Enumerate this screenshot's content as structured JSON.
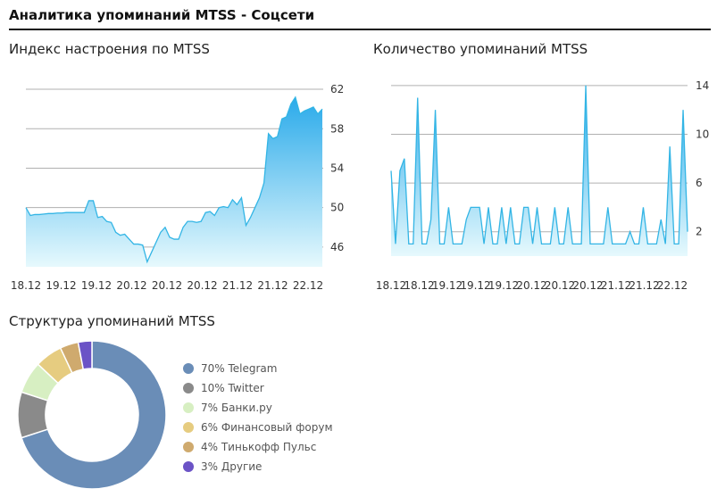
{
  "page": {
    "title": "Аналитика упоминаний MTSS - Соцсети"
  },
  "sections": {
    "sentiment_title": "Индекс настроения по MTSS",
    "mentions_title": "Количество упоминаний MTSS",
    "structure_title": "Структура упоминаний MTSS"
  },
  "colors": {
    "line": "#33b5e5",
    "area_top": "#2aaaea",
    "area_bottom": "#e6f9fd",
    "grid": "#b0b0b0"
  },
  "chart_data": [
    {
      "type": "area",
      "title": "Индекс настроения по MTSS",
      "x_tick_labels": [
        "18.12",
        "19.12",
        "19.12",
        "20.12",
        "20.12",
        "20.12",
        "21.12",
        "21.12",
        "22.12"
      ],
      "y_ticks": [
        46,
        50,
        54,
        58,
        62
      ],
      "ylim": [
        44,
        63
      ],
      "grid": true,
      "y_axis_side": "right",
      "series": [
        {
          "values": [
            50.0,
            49.2,
            49.3,
            49.3,
            49.35,
            49.4,
            49.4,
            49.45,
            49.45,
            49.5,
            49.5,
            49.5,
            49.5,
            49.5,
            50.7,
            50.7,
            49.0,
            49.1,
            48.6,
            48.5,
            47.5,
            47.2,
            47.3,
            46.8,
            46.3,
            46.3,
            46.2,
            44.5,
            45.5,
            46.5,
            47.5,
            48.0,
            47.0,
            46.8,
            46.8,
            48.0,
            48.6,
            48.6,
            48.5,
            48.6,
            49.5,
            49.6,
            49.2,
            50.0,
            50.1,
            50.0,
            50.8,
            50.3,
            51.0,
            48.2,
            49.0,
            50.0,
            51.0,
            52.5,
            57.5,
            57.0,
            57.2,
            59.0,
            59.2,
            60.5,
            61.2,
            59.5,
            59.8,
            60.0,
            60.2,
            59.5,
            60.0
          ]
        }
      ]
    },
    {
      "type": "area",
      "title": "Количество упоминаний MTSS",
      "x_tick_labels": [
        "18.12",
        "18.12",
        "19.12",
        "19.12",
        "19.12",
        "20.12",
        "20.12",
        "20.12",
        "21.12",
        "21.12",
        "22.12"
      ],
      "y_ticks": [
        2,
        6,
        10,
        14
      ],
      "ylim": [
        0,
        14.5
      ],
      "grid": true,
      "y_axis_side": "right",
      "series": [
        {
          "values": [
            7,
            1,
            7,
            8,
            1,
            1,
            13,
            1,
            1,
            3,
            12,
            1,
            1,
            4,
            1,
            1,
            1,
            3,
            4,
            4,
            4,
            1,
            4,
            1,
            1,
            4,
            1,
            4,
            1,
            1,
            4,
            4,
            1,
            4,
            1,
            1,
            1,
            4,
            1,
            1,
            4,
            1,
            1,
            1,
            14,
            1,
            1,
            1,
            1,
            4,
            1,
            1,
            1,
            1,
            2,
            1,
            1,
            4,
            1,
            1,
            1,
            3,
            1,
            9,
            1,
            1,
            12,
            2
          ]
        }
      ]
    },
    {
      "type": "pie",
      "title": "Структура упоминаний MTSS",
      "slices": [
        {
          "label": "70% Telegram",
          "value": 70,
          "color": "#6a8db7"
        },
        {
          "label": "10% Twitter",
          "value": 10,
          "color": "#8a8a8a"
        },
        {
          "label": "7% Банки.ру",
          "value": 7,
          "color": "#d7efc2"
        },
        {
          "label": "6% Финансовый форум",
          "value": 6,
          "color": "#e6cc80"
        },
        {
          "label": "4% Тинькофф Пульс",
          "value": 4,
          "color": "#cfaa6e"
        },
        {
          "label": "3% Другие",
          "value": 3,
          "color": "#6b53c6"
        }
      ]
    }
  ]
}
